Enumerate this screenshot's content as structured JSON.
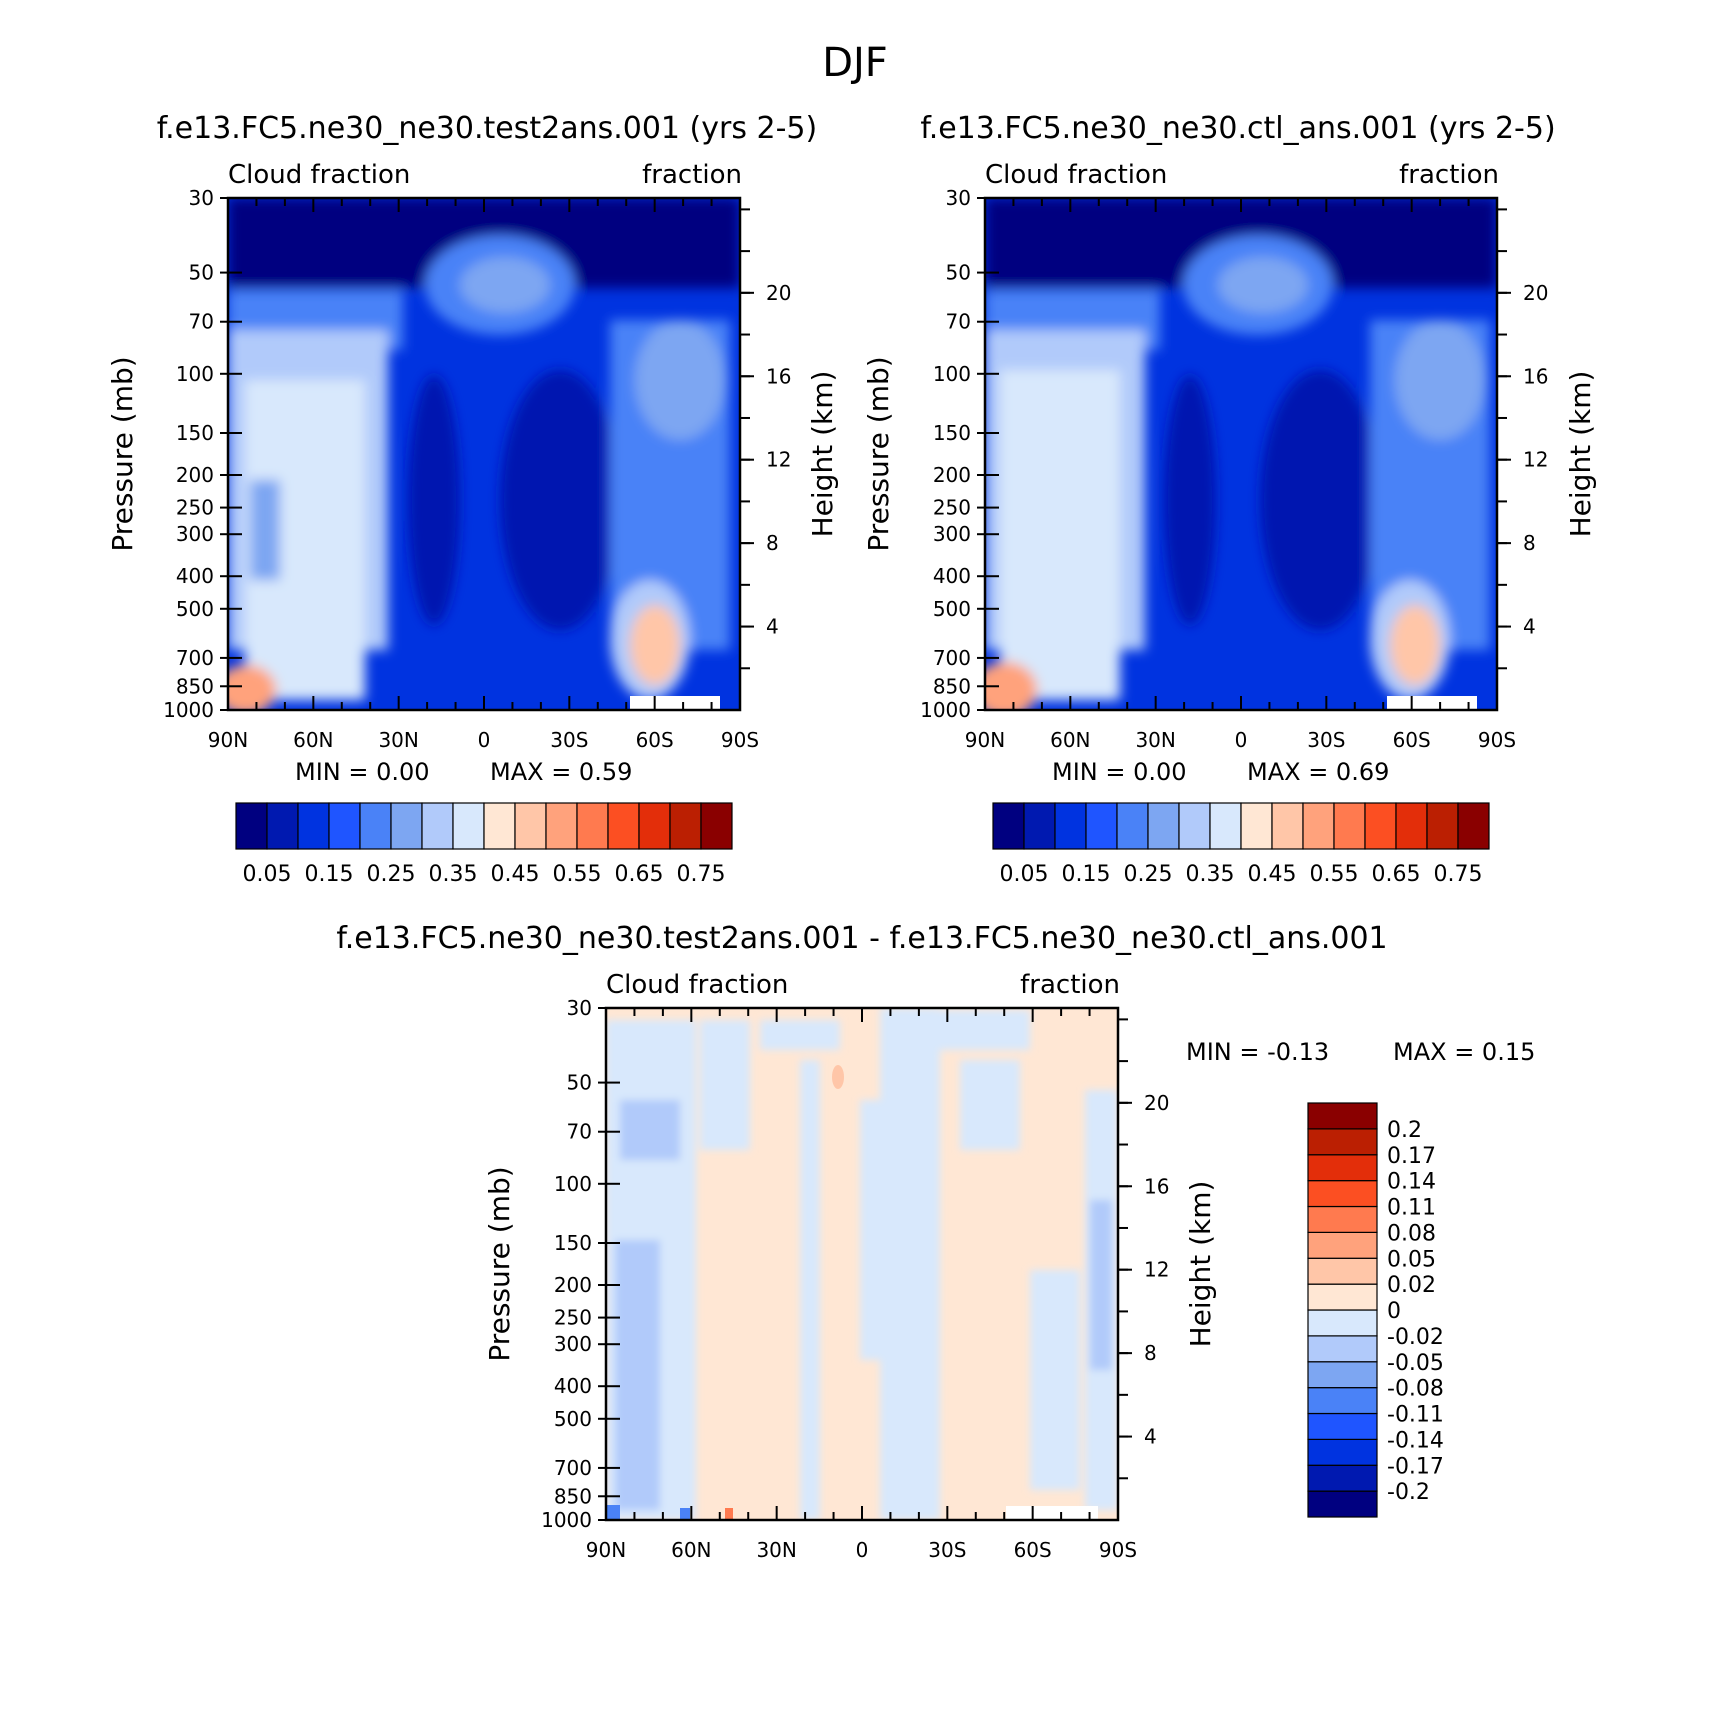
{
  "title": "DJF",
  "colors": {
    "abs_levels": [
      "#000080",
      "#0019b0",
      "#0033e0",
      "#1f55ff",
      "#4a82f7",
      "#7da6f2",
      "#b1cafa",
      "#d8e8fc",
      "#ffe7d4",
      "#ffc6a8",
      "#ffa27c",
      "#ff7a4f",
      "#fc4f22",
      "#e32e0a",
      "#bb1f02",
      "#8a0000"
    ],
    "diff_levels": [
      "#000080",
      "#0019b0",
      "#0033e0",
      "#1f55ff",
      "#4a82f7",
      "#7da6f2",
      "#b1cafa",
      "#d8e8fc",
      "#ffe7d4",
      "#ffc6a8",
      "#ffa27c",
      "#ff7a4f",
      "#fc4f22",
      "#e32e0a",
      "#bb1f02",
      "#8a0000"
    ]
  },
  "chart_data": [
    {
      "type": "heatmap",
      "title": "f.e13.FC5.ne30_ne30.test2ans.001 (yrs 2-5)",
      "left_label": "Cloud fraction",
      "right_label": "fraction",
      "ylabel": "Pressure (mb)",
      "y2label": "Height (km)",
      "x_ticks": [
        "90N",
        "60N",
        "30N",
        "0",
        "30S",
        "60S",
        "90S"
      ],
      "y_ticks": [
        "30",
        "50",
        "70",
        "100",
        "150",
        "200",
        "250",
        "300",
        "400",
        "500",
        "700",
        "850",
        "1000"
      ],
      "y2_ticks": [
        "20",
        "16",
        "12",
        "8",
        "4"
      ],
      "min_text": "MIN = 0.00",
      "max_text": "MAX = 0.59",
      "min": 0.0,
      "max": 0.59,
      "colorbar_labels": [
        "0.05",
        "0.15",
        "0.25",
        "0.35",
        "0.45",
        "0.55",
        "0.65",
        "0.75"
      ]
    },
    {
      "type": "heatmap",
      "title": "f.e13.FC5.ne30_ne30.ctl_ans.001 (yrs 2-5)",
      "left_label": "Cloud fraction",
      "right_label": "fraction",
      "ylabel": "Pressure (mb)",
      "y2label": "Height (km)",
      "x_ticks": [
        "90N",
        "60N",
        "30N",
        "0",
        "30S",
        "60S",
        "90S"
      ],
      "y_ticks": [
        "30",
        "50",
        "70",
        "100",
        "150",
        "200",
        "250",
        "300",
        "400",
        "500",
        "700",
        "850",
        "1000"
      ],
      "y2_ticks": [
        "20",
        "16",
        "12",
        "8",
        "4"
      ],
      "min_text": "MIN = 0.00",
      "max_text": "MAX = 0.69",
      "min": 0.0,
      "max": 0.69,
      "colorbar_labels": [
        "0.05",
        "0.15",
        "0.25",
        "0.35",
        "0.45",
        "0.55",
        "0.65",
        "0.75"
      ]
    },
    {
      "type": "heatmap",
      "title": "f.e13.FC5.ne30_ne30.test2ans.001 - f.e13.FC5.ne30_ne30.ctl_ans.001",
      "left_label": "Cloud fraction",
      "right_label": "fraction",
      "ylabel": "Pressure (mb)",
      "y2label": "Height (km)",
      "x_ticks": [
        "90N",
        "60N",
        "30N",
        "0",
        "30S",
        "60S",
        "90S"
      ],
      "y_ticks": [
        "30",
        "50",
        "70",
        "100",
        "150",
        "200",
        "250",
        "300",
        "400",
        "500",
        "700",
        "850",
        "1000"
      ],
      "y2_ticks": [
        "20",
        "16",
        "12",
        "8",
        "4"
      ],
      "min_text": "MIN = -0.13",
      "max_text": "MAX = 0.15",
      "min": -0.13,
      "max": 0.15,
      "colorbar_labels": [
        "0.2",
        "0.17",
        "0.14",
        "0.11",
        "0.08",
        "0.05",
        "0.02",
        "0",
        "-0.02",
        "-0.05",
        "-0.08",
        "-0.11",
        "-0.14",
        "-0.17",
        "-0.2"
      ]
    }
  ]
}
